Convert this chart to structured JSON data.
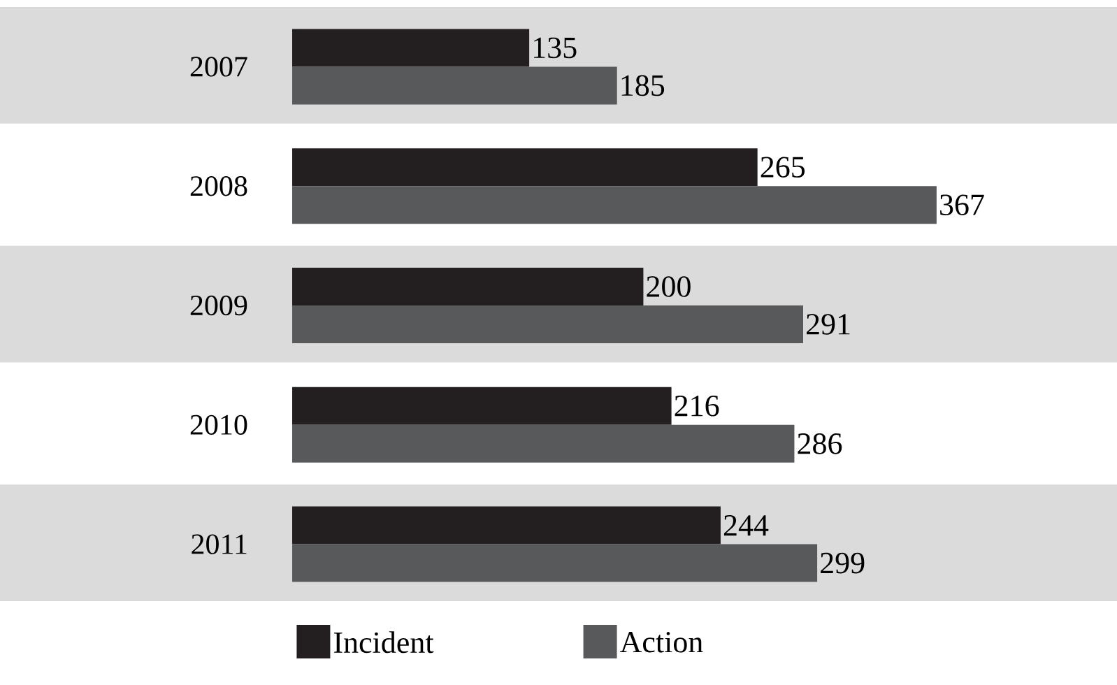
{
  "chart_data": {
    "type": "bar",
    "orientation": "horizontal",
    "categories": [
      "2007",
      "2008",
      "2009",
      "2010",
      "2011"
    ],
    "series": [
      {
        "name": "Incident",
        "color": "#231f20",
        "values": [
          135,
          265,
          200,
          216,
          244
        ]
      },
      {
        "name": "Action",
        "color": "#58595b",
        "values": [
          185,
          367,
          291,
          286,
          299
        ]
      }
    ],
    "tick_labels": "y",
    "data_labels": true,
    "legend": "bottom",
    "grid": false
  }
}
